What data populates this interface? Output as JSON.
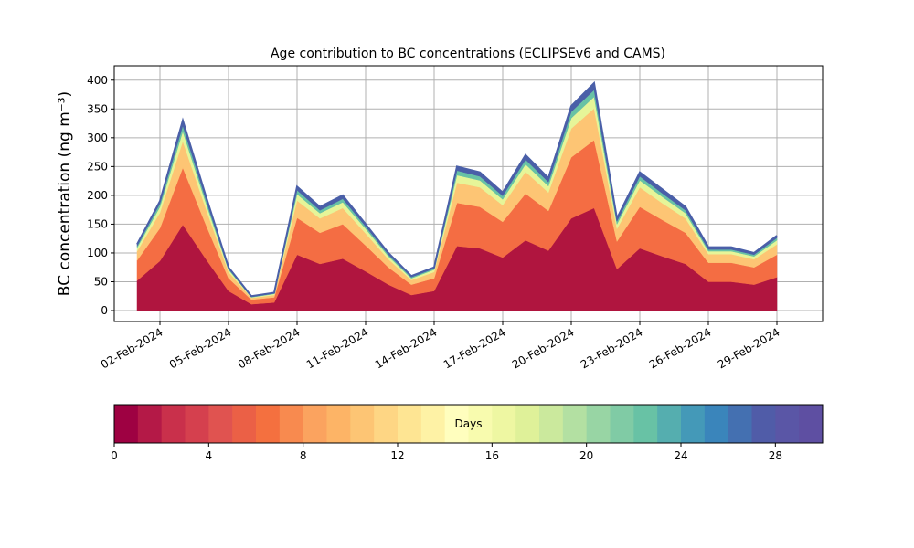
{
  "chart_data": {
    "type": "stacked_area",
    "title": "Age contribution to BC concentrations (ECLIPSEv6 and CAMS)",
    "y_label": "BC concentration (ng m⁻³)",
    "x": [
      "2024-02-01",
      "2024-02-02",
      "2024-02-03",
      "2024-02-04",
      "2024-02-05",
      "2024-02-06",
      "2024-02-07",
      "2024-02-08",
      "2024-02-09",
      "2024-02-10",
      "2024-02-11",
      "2024-02-12",
      "2024-02-13",
      "2024-02-14",
      "2024-02-15",
      "2024-02-16",
      "2024-02-17",
      "2024-02-18",
      "2024-02-19",
      "2024-02-20",
      "2024-02-21",
      "2024-02-22",
      "2024-02-23",
      "2024-02-24",
      "2024-02-25",
      "2024-02-26",
      "2024-02-27",
      "2024-02-28",
      "2024-02-29"
    ],
    "series": [
      {
        "color": "#b0153f",
        "values": [
          52,
          86,
          149,
          90,
          34,
          11,
          14,
          97,
          81,
          90,
          68,
          45,
          27,
          34,
          112,
          108,
          92,
          122,
          104,
          160,
          178,
          72,
          108,
          94,
          81,
          50,
          50,
          45,
          58
        ]
      },
      {
        "color": "#f46d43",
        "values": [
          35,
          57,
          99,
          60,
          22,
          8,
          9,
          64,
          54,
          60,
          45,
          30,
          18,
          22,
          75,
          72,
          62,
          81,
          69,
          106,
          118,
          48,
          72,
          63,
          54,
          33,
          33,
          30,
          39
        ]
      },
      {
        "color": "#fdc574",
        "values": [
          16,
          27,
          46,
          28,
          11,
          3,
          4,
          30,
          25,
          28,
          21,
          14,
          8,
          11,
          35,
          34,
          29,
          38,
          32,
          50,
          55,
          22,
          34,
          29,
          25,
          15,
          15,
          14,
          18
        ]
      },
      {
        "color": "#e6f598",
        "values": [
          6,
          10,
          17,
          10,
          4,
          1,
          2,
          11,
          9,
          10,
          8,
          5,
          3,
          4,
          13,
          12,
          10,
          13,
          11,
          18,
          20,
          8,
          12,
          11,
          9,
          5,
          5,
          5,
          7
        ]
      },
      {
        "color": "#68c2a5",
        "values": [
          3,
          6,
          10,
          6,
          2,
          1,
          1,
          7,
          5,
          6,
          4,
          3,
          2,
          2,
          8,
          7,
          6,
          8,
          7,
          11,
          12,
          5,
          7,
          6,
          5,
          3,
          3,
          3,
          4
        ]
      },
      {
        "color": "#4a5fa8",
        "values": [
          3,
          4,
          9,
          6,
          2,
          1,
          1,
          6,
          6,
          6,
          4,
          3,
          2,
          2,
          7,
          7,
          6,
          8,
          7,
          10,
          12,
          5,
          7,
          7,
          6,
          4,
          4,
          3,
          4
        ]
      }
    ],
    "xlim": [
      "2024-01-31",
      "2024-03-02"
    ],
    "xticks": [
      {
        "value": "2024-02-02",
        "label": "02-Feb-2024"
      },
      {
        "value": "2024-02-05",
        "label": "05-Feb-2024"
      },
      {
        "value": "2024-02-08",
        "label": "08-Feb-2024"
      },
      {
        "value": "2024-02-11",
        "label": "11-Feb-2024"
      },
      {
        "value": "2024-02-14",
        "label": "14-Feb-2024"
      },
      {
        "value": "2024-02-17",
        "label": "17-Feb-2024"
      },
      {
        "value": "2024-02-20",
        "label": "20-Feb-2024"
      },
      {
        "value": "2024-02-23",
        "label": "23-Feb-2024"
      },
      {
        "value": "2024-02-26",
        "label": "26-Feb-2024"
      },
      {
        "value": "2024-02-29",
        "label": "29-Feb-2024"
      }
    ],
    "ylim": [
      -19,
      425
    ],
    "yticks": [
      0,
      50,
      100,
      150,
      200,
      250,
      300,
      350,
      400
    ],
    "grid": true,
    "colorbar": {
      "label": "Days",
      "lim": [
        0,
        30
      ],
      "ticks": [
        0,
        4,
        8,
        12,
        16,
        20,
        24,
        28
      ],
      "colors": [
        "#9e0142",
        "#b41947",
        "#c9304b",
        "#d5404e",
        "#e05350",
        "#eb6046",
        "#f4703f",
        "#f88a4f",
        "#fba35f",
        "#fdb466",
        "#fdc574",
        "#fed684",
        "#fee593",
        "#fef2a5",
        "#fffebe",
        "#f8fbae",
        "#eef7a2",
        "#dff199",
        "#cbe99d",
        "#b3e0a2",
        "#98d5a4",
        "#80cba5",
        "#68c2a5",
        "#55aeaf",
        "#4499b8",
        "#3a85bb",
        "#4470b1",
        "#505ca8",
        "#5a56a6",
        "#5e4fa2"
      ]
    }
  }
}
